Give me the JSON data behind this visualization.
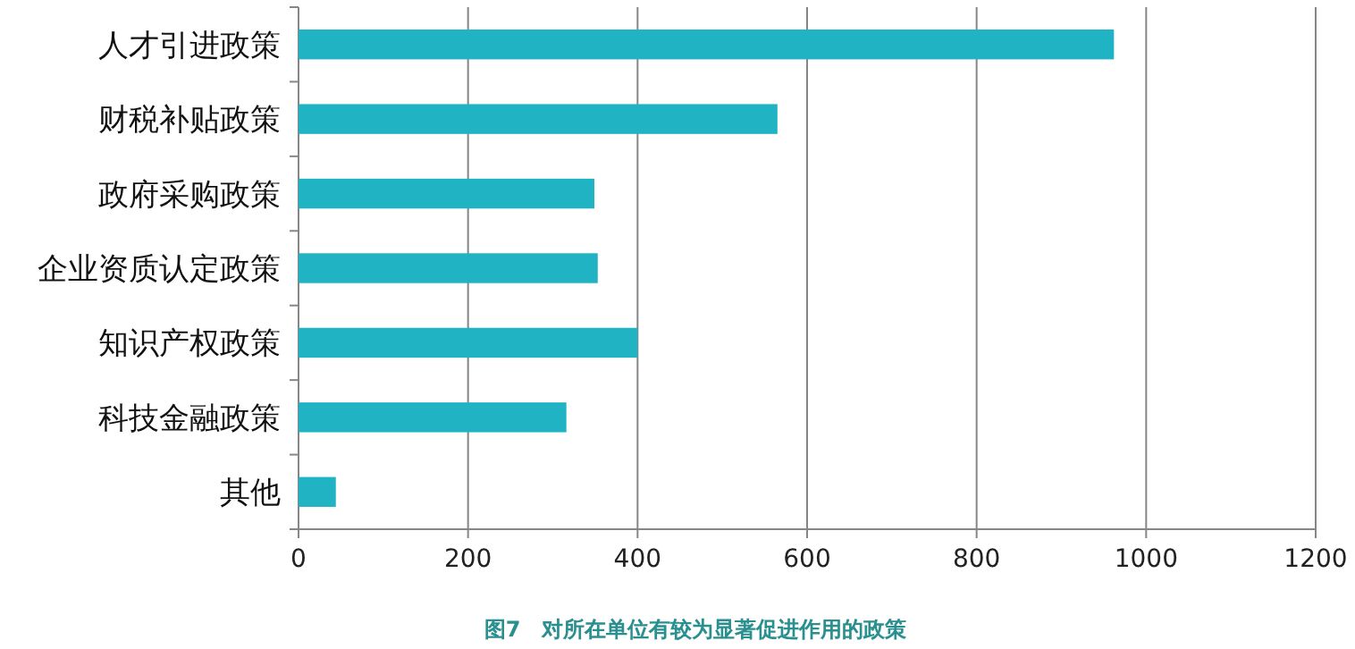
{
  "chart_data": {
    "type": "bar",
    "orientation": "horizontal",
    "title": "图7　对所在单位有较为显著促进作用的政策",
    "categories": [
      "人才引进政策",
      "财税补贴政策",
      "政府采购政策",
      "企业资质认定政策",
      "知识产权政策",
      "科技金融政策",
      "其他"
    ],
    "values": [
      962,
      565,
      349,
      353,
      400,
      316,
      44
    ],
    "color": "#1fb3c3",
    "xlim": [
      0,
      1200
    ],
    "xticks": [
      0,
      200,
      400,
      600,
      800,
      1000,
      1200
    ],
    "grid": "x"
  }
}
